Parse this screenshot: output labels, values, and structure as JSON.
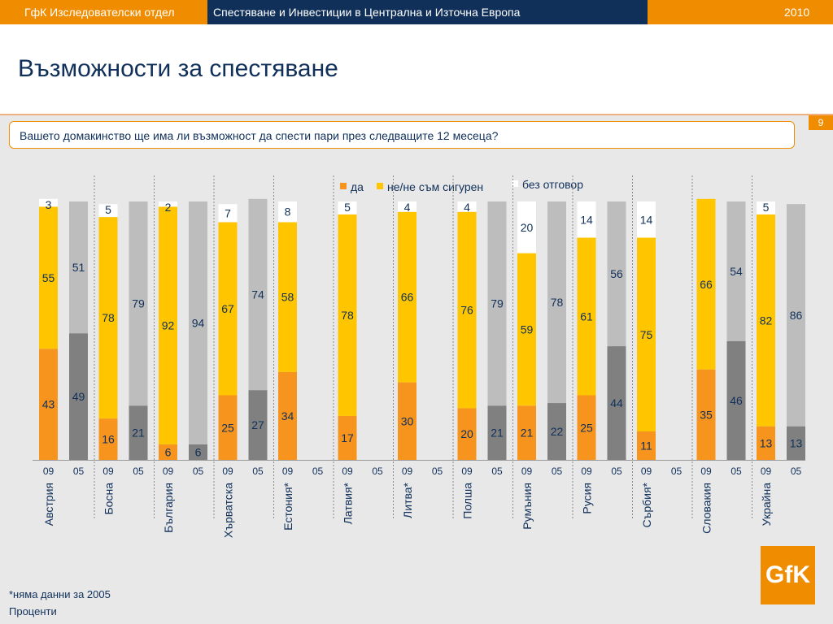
{
  "header": {
    "left_label": "ГфК Изследователски отдел",
    "center_label": "Спестяване и Инвестиции в Централна и Източна Европа",
    "year": "2010"
  },
  "slide": {
    "title": "Възможности за спестяване",
    "page_number": "9",
    "question": "Вашето домакинство ще има ли възможност да спести пари през следващите 12 месеца?",
    "footnote": "*няма данни за 2005",
    "units": "Проценти",
    "logo_text": "GfK"
  },
  "colors": {
    "yes_09": "#f7941d",
    "unsure_09": "#ffc600",
    "yes_05": "#808080",
    "unsure_05": "#bdbdbd",
    "no_answer": "#ffffff",
    "navy": "#10305a",
    "orange": "#f08c00"
  },
  "chart_data": {
    "type": "bar",
    "stacked": true,
    "ylim": [
      0,
      100
    ],
    "series_names": [
      "да",
      "не/не съм сигурен",
      "без отговор"
    ],
    "year_labels": [
      "09",
      "05"
    ],
    "countries": [
      {
        "name": "Австрия",
        "y09": [
          43,
          55,
          3
        ],
        "y05": [
          49,
          51,
          0
        ]
      },
      {
        "name": "Босна",
        "y09": [
          16,
          78,
          5
        ],
        "y05": [
          21,
          79,
          0
        ]
      },
      {
        "name": "България",
        "y09": [
          6,
          92,
          2
        ],
        "y05": [
          6,
          94,
          0
        ]
      },
      {
        "name": "Хърватска",
        "y09": [
          25,
          67,
          7
        ],
        "y05": [
          27,
          74,
          0
        ]
      },
      {
        "name": "Естония*",
        "y09": [
          34,
          58,
          8
        ],
        "y05": null
      },
      {
        "name": "Латвия*",
        "y09": [
          17,
          78,
          5
        ],
        "y05": null
      },
      {
        "name": "Литва*",
        "y09": [
          30,
          66,
          4
        ],
        "y05": null
      },
      {
        "name": "Полша",
        "y09": [
          20,
          76,
          4
        ],
        "y05": [
          21,
          79,
          0
        ]
      },
      {
        "name": "Румъния",
        "y09": [
          21,
          59,
          20
        ],
        "y05": [
          22,
          78,
          0
        ]
      },
      {
        "name": "Русия",
        "y09": [
          25,
          61,
          14
        ],
        "y05": [
          44,
          56,
          0
        ]
      },
      {
        "name": "Сърбия*",
        "y09": [
          11,
          75,
          14
        ],
        "y05": null
      },
      {
        "name": "Словакия",
        "y09": [
          35,
          66,
          0
        ],
        "y05": [
          46,
          54,
          0
        ]
      },
      {
        "name": "Украйна",
        "y09": [
          13,
          82,
          5
        ],
        "y05": [
          13,
          86,
          0
        ]
      }
    ]
  }
}
